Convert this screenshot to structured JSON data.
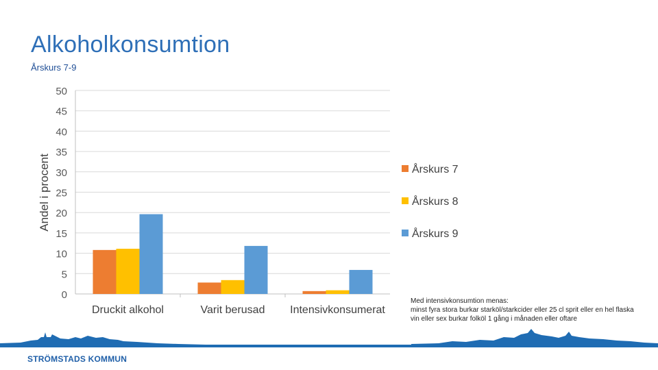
{
  "header": {
    "title": "Alkoholkonsumtion",
    "subtitle": "Årskurs 7-9"
  },
  "chart_data": {
    "type": "bar",
    "title": "",
    "xlabel": "",
    "ylabel": "Andel i procent",
    "ylim": [
      0,
      50
    ],
    "yticks": [
      0,
      5,
      10,
      15,
      20,
      25,
      30,
      35,
      40,
      45,
      50
    ],
    "grid": true,
    "legend": "right",
    "categories": [
      "Druckit alkohol",
      "Varit berusad",
      "Intensivkonsumerat"
    ],
    "series": [
      {
        "name": "Årskurs 7",
        "color": "#ed7d31",
        "values": [
          10.8,
          2.8,
          0.7
        ]
      },
      {
        "name": "Årskurs 8",
        "color": "#ffc000",
        "values": [
          11.1,
          3.4,
          0.9
        ]
      },
      {
        "name": "Årskurs 9",
        "color": "#5b9bd5",
        "values": [
          19.6,
          11.8,
          5.9
        ]
      }
    ]
  },
  "note": {
    "line1": "Med intensivkonsumtion menas:",
    "line2": "minst fyra stora burkar starköl/starkcider eller 25 cl sprit eller en hel flaska vin eller sex burkar folköl 1 gång i månaden eller oftare"
  },
  "footer": {
    "logo_text": "STRÖMSTADS KOMMUN",
    "brand_color": "#1f6cb3"
  }
}
